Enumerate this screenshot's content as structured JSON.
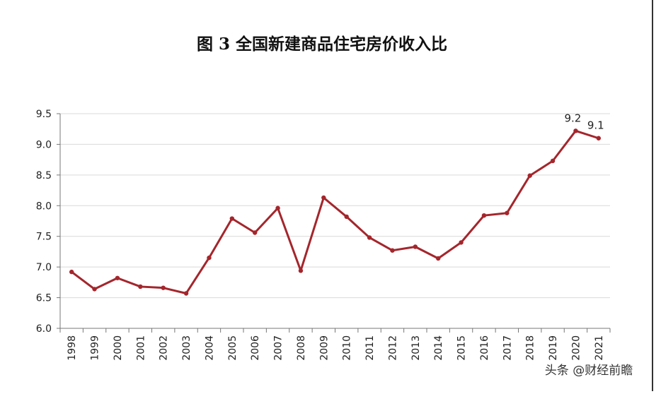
{
  "chart_data": {
    "type": "line",
    "title": "图 3 全国新建商品住宅房价收入比",
    "categories": [
      "1998",
      "1999",
      "2000",
      "2001",
      "2002",
      "2003",
      "2004",
      "2005",
      "2006",
      "2007",
      "2008",
      "2009",
      "2010",
      "2011",
      "2012",
      "2013",
      "2014",
      "2015",
      "2016",
      "2017",
      "2018",
      "2019",
      "2020",
      "2021"
    ],
    "series": [
      {
        "name": "房价收入比",
        "color": "#a4262c",
        "values": [
          6.92,
          6.64,
          6.82,
          6.68,
          6.66,
          6.57,
          7.15,
          7.79,
          7.56,
          7.96,
          6.94,
          8.13,
          7.82,
          7.48,
          7.27,
          7.33,
          7.14,
          7.4,
          7.84,
          7.88,
          8.49,
          8.73,
          9.22,
          9.1
        ],
        "value_labels": [
          null,
          null,
          null,
          null,
          null,
          null,
          null,
          null,
          null,
          null,
          null,
          null,
          null,
          null,
          null,
          null,
          null,
          null,
          null,
          null,
          null,
          null,
          "9.2",
          "9.1"
        ]
      }
    ],
    "ylim": [
      6.0,
      9.5
    ],
    "yticks": [
      {
        "value": 6,
        "label": "6.0"
      },
      6.5,
      {
        "value": 7,
        "label": "7.0"
      },
      7.5,
      {
        "value": 8,
        "label": "8.0"
      },
      8.5,
      {
        "value": 9,
        "label": "9.0"
      },
      9.5
    ],
    "grid": true,
    "watermark": "头条 @财经前瞻"
  }
}
